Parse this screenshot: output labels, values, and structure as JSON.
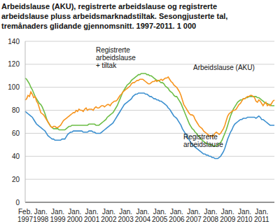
{
  "chart_data": {
    "type": "line",
    "title": "Arbeidslause (AKU), registrerte arbeidslause og registrerte arbeidslause pluss arbeidsmarknadstiltak. Sesongjusterte tal, tremånaders glidande gjennomsnitt. 1997-2011. 1 000",
    "categories": [
      "Feb. 1997",
      null,
      null,
      null,
      null,
      null,
      null,
      null,
      null,
      null,
      null,
      "Jan. 1998",
      null,
      null,
      null,
      null,
      null,
      null,
      null,
      null,
      null,
      null,
      null,
      "Jan. 1999",
      null,
      null,
      null,
      null,
      null,
      null,
      null,
      null,
      null,
      null,
      null,
      "Jan. 2000",
      null,
      null,
      null,
      null,
      null,
      null,
      null,
      null,
      null,
      null,
      null,
      "Jan. 2001",
      null,
      null,
      null,
      null,
      null,
      null,
      null,
      null,
      null,
      null,
      null,
      "Jan. 2002",
      null,
      null,
      null,
      null,
      null,
      null,
      null,
      null,
      null,
      null,
      null,
      "Jan. 2003",
      null,
      null,
      null,
      null,
      null,
      null,
      null,
      null,
      null,
      null,
      null,
      "Jan. 2004",
      null,
      null,
      null,
      null,
      null,
      null,
      null,
      null,
      null,
      null,
      null,
      "Jan. 2005",
      null,
      null,
      null,
      null,
      null,
      null,
      null,
      null,
      null,
      null,
      null,
      "Jan. 2006",
      null,
      null,
      null,
      null,
      null,
      null,
      null,
      null,
      null,
      null,
      null,
      "Jan. 2007",
      null,
      null,
      null,
      null,
      null,
      null,
      null,
      null,
      null,
      null,
      null,
      "Jan. 2008",
      null,
      null,
      null,
      null,
      null,
      null,
      null,
      null,
      null,
      null,
      null,
      "Jan. 2009",
      null,
      null,
      null,
      null,
      null,
      null,
      null,
      null,
      null,
      null,
      null,
      "Jan. 2010",
      null,
      null,
      null,
      null,
      null,
      null,
      null,
      null,
      null,
      null,
      null,
      "Jan. 2011",
      null,
      null,
      null,
      null,
      null,
      null,
      null,
      null,
      null
    ],
    "series": [
      {
        "name": "Registrerte arbeidslause",
        "color": "#3b8fcf",
        "values": [
          79,
          78,
          77,
          76,
          75,
          74,
          72,
          70,
          68,
          67,
          66,
          65,
          64,
          63,
          62,
          60,
          58,
          57,
          56,
          55,
          55,
          54,
          54,
          54,
          54,
          54,
          55,
          55,
          55,
          57,
          59,
          60,
          61,
          61,
          62,
          62,
          62,
          62,
          62,
          62,
          62,
          61,
          61,
          61,
          61,
          62,
          62,
          62,
          61,
          61,
          60,
          60,
          60,
          60,
          61,
          62,
          63,
          64,
          65,
          66,
          67,
          68,
          69,
          71,
          73,
          75,
          77,
          79,
          81,
          83,
          85,
          86,
          87,
          88,
          89,
          90,
          92,
          93,
          94,
          94,
          95,
          95,
          95,
          95,
          95,
          94,
          94,
          93,
          92,
          92,
          91,
          90,
          90,
          89,
          89,
          88,
          88,
          87,
          86,
          85,
          84,
          82,
          81,
          79,
          77,
          75,
          74,
          73,
          71,
          69,
          67,
          64,
          62,
          60,
          58,
          56,
          54,
          52,
          50,
          49,
          48,
          47,
          46,
          45,
          44,
          43,
          42,
          42,
          41,
          41,
          40,
          40,
          39,
          39,
          38,
          38,
          38,
          39,
          40,
          42,
          44,
          47,
          51,
          55,
          58,
          61,
          63,
          66,
          68,
          69,
          70,
          71,
          72,
          72,
          73,
          73,
          73,
          74,
          74,
          74,
          74,
          74,
          74,
          73,
          74,
          75,
          74,
          72,
          72,
          71,
          70,
          69,
          68,
          67,
          67,
          67,
          67
        ]
      },
      {
        "name": "Registrerte arbeidslause + tiltak",
        "color": "#6cbd45",
        "values": [
          108,
          107,
          105,
          103,
          100,
          98,
          95,
          92,
          90,
          88,
          86,
          85,
          83,
          80,
          77,
          73,
          70,
          68,
          66,
          65,
          64,
          64,
          64,
          64,
          63,
          63,
          63,
          63,
          63,
          64,
          65,
          66,
          66,
          67,
          67,
          67,
          67,
          67,
          67,
          67,
          67,
          67,
          67,
          67,
          67,
          68,
          68,
          68,
          68,
          68,
          67,
          67,
          67,
          68,
          69,
          70,
          71,
          72,
          74,
          75,
          76,
          77,
          78,
          80,
          82,
          84,
          87,
          90,
          93,
          96,
          98,
          100,
          102,
          103,
          104,
          106,
          107,
          108,
          109,
          110,
          111,
          111,
          112,
          112,
          112,
          112,
          111,
          111,
          110,
          110,
          109,
          108,
          107,
          106,
          106,
          105,
          104,
          104,
          103,
          101,
          100,
          99,
          97,
          96,
          95,
          93,
          92,
          92,
          90,
          88,
          86,
          83,
          80,
          77,
          74,
          71,
          68,
          66,
          64,
          63,
          61,
          60,
          58,
          57,
          55,
          54,
          53,
          52,
          51,
          51,
          50,
          50,
          50,
          49,
          49,
          49,
          50,
          51,
          52,
          54,
          57,
          60,
          63,
          67,
          71,
          75,
          78,
          81,
          83,
          85,
          87,
          88,
          89,
          89,
          90,
          90,
          91,
          91,
          92,
          92,
          92,
          92,
          92,
          92,
          91,
          91,
          90,
          89,
          88,
          87,
          86,
          86,
          85,
          85,
          84,
          84,
          84
        ]
      },
      {
        "name": "Arbeidslause (AKU)",
        "color": "#f7941d",
        "values": [
          89,
          90,
          93,
          92,
          96,
          94,
          91,
          92,
          88,
          86,
          82,
          78,
          77,
          76,
          74,
          72,
          70,
          68,
          66,
          65,
          66,
          66,
          65,
          65,
          66,
          67,
          69,
          71,
          72,
          73,
          74,
          75,
          76,
          77,
          78,
          78,
          80,
          79,
          81,
          80,
          80,
          79,
          81,
          82,
          80,
          81,
          81,
          81,
          80,
          82,
          83,
          82,
          82,
          83,
          84,
          84,
          83,
          84,
          85,
          85,
          84,
          86,
          87,
          88,
          88,
          89,
          91,
          93,
          94,
          96,
          97,
          98,
          99,
          100,
          101,
          103,
          104,
          104,
          105,
          106,
          106,
          107,
          107,
          107,
          106,
          105,
          104,
          103,
          103,
          104,
          105,
          105,
          106,
          105,
          106,
          106,
          107,
          106,
          107,
          108,
          108,
          109,
          107,
          105,
          104,
          102,
          101,
          100,
          98,
          96,
          93,
          89,
          85,
          83,
          81,
          79,
          77,
          76,
          76,
          75,
          72,
          70,
          68,
          66,
          65,
          64,
          62,
          61,
          60,
          59,
          58,
          58,
          57,
          58,
          60,
          61,
          60,
          59,
          60,
          62,
          64,
          67,
          71,
          75,
          77,
          78,
          79,
          80,
          80,
          81,
          83,
          85,
          86,
          88,
          90,
          90,
          91,
          92,
          92,
          93,
          93,
          92,
          91,
          88,
          87,
          89,
          88,
          86,
          84,
          86,
          87,
          84,
          85,
          84,
          86,
          88,
          89
        ]
      }
    ],
    "ylim": [
      0,
      140
    ],
    "yticks": [
      0,
      20,
      40,
      60,
      80,
      100,
      120,
      140
    ],
    "grid": true
  }
}
